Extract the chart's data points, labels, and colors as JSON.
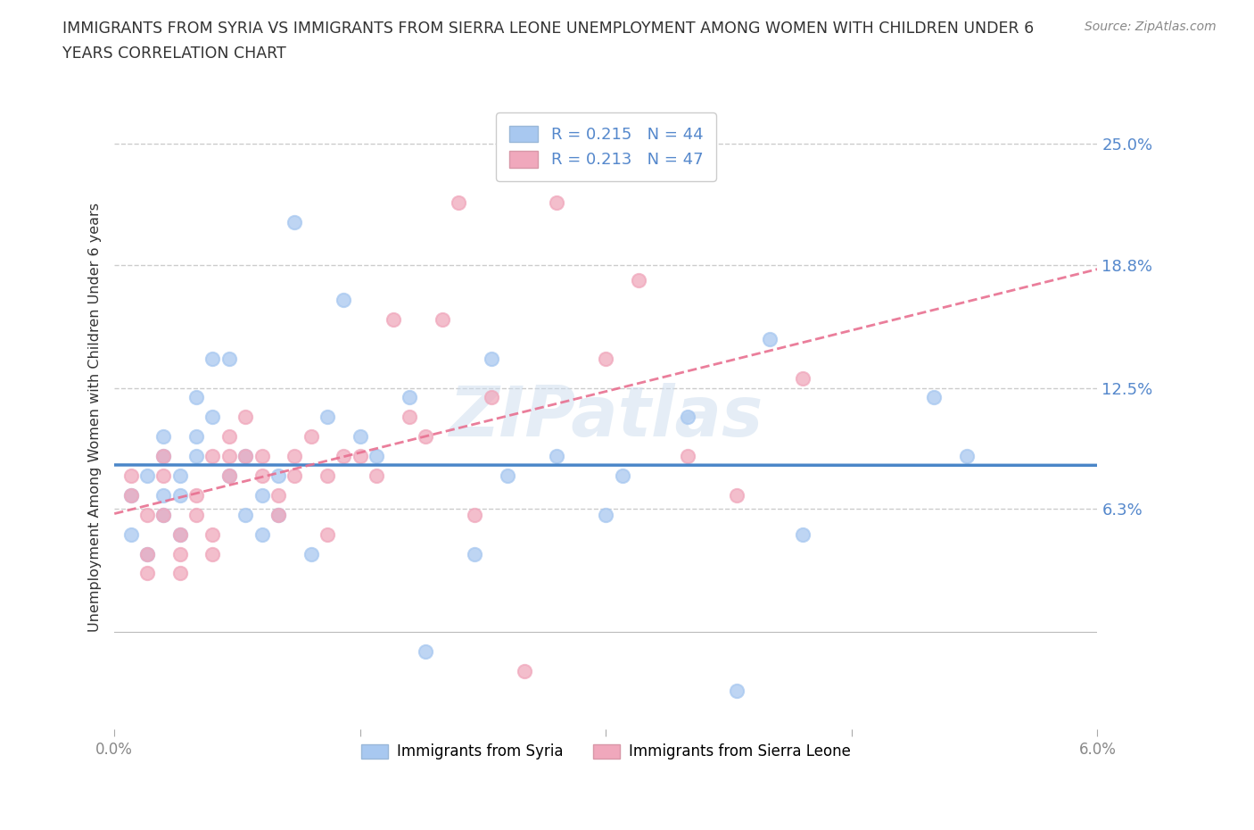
{
  "title_line1": "IMMIGRANTS FROM SYRIA VS IMMIGRANTS FROM SIERRA LEONE UNEMPLOYMENT AMONG WOMEN WITH CHILDREN UNDER 6",
  "title_line2": "YEARS CORRELATION CHART",
  "source": "Source: ZipAtlas.com",
  "ylabel": "Unemployment Among Women with Children Under 6 years",
  "xlim": [
    0.0,
    0.06
  ],
  "ylim": [
    -0.05,
    0.27
  ],
  "yticks": [
    0.063,
    0.125,
    0.188,
    0.25
  ],
  "ytick_labels": [
    "6.3%",
    "12.5%",
    "18.8%",
    "25.0%"
  ],
  "xticks": [
    0.0,
    0.015,
    0.03,
    0.045,
    0.06
  ],
  "xtick_labels": [
    "0.0%",
    "",
    "",
    "",
    "6.0%"
  ],
  "syria_color": "#a8c8f0",
  "sierra_leone_color": "#f0a8bc",
  "syria_line_color": "#4a86c8",
  "sierra_leone_line_color": "#e87090",
  "legend_syria_label": "Immigrants from Syria",
  "legend_sierra_leone_label": "Immigrants from Sierra Leone",
  "syria_R": 0.215,
  "syria_N": 44,
  "sierra_leone_R": 0.213,
  "sierra_leone_N": 47,
  "watermark": "ZIPatlas",
  "syria_x": [
    0.001,
    0.001,
    0.002,
    0.002,
    0.003,
    0.003,
    0.003,
    0.003,
    0.004,
    0.004,
    0.004,
    0.005,
    0.005,
    0.005,
    0.006,
    0.006,
    0.007,
    0.007,
    0.008,
    0.008,
    0.009,
    0.009,
    0.01,
    0.01,
    0.011,
    0.012,
    0.013,
    0.014,
    0.015,
    0.016,
    0.018,
    0.019,
    0.022,
    0.023,
    0.024,
    0.027,
    0.03,
    0.031,
    0.035,
    0.038,
    0.04,
    0.042,
    0.05,
    0.052
  ],
  "syria_y": [
    0.07,
    0.05,
    0.08,
    0.04,
    0.09,
    0.07,
    0.06,
    0.1,
    0.05,
    0.08,
    0.07,
    0.12,
    0.09,
    0.1,
    0.14,
    0.11,
    0.14,
    0.08,
    0.06,
    0.09,
    0.07,
    0.05,
    0.06,
    0.08,
    0.21,
    0.04,
    0.11,
    0.17,
    0.1,
    0.09,
    0.12,
    -0.01,
    0.04,
    0.14,
    0.08,
    0.09,
    0.06,
    0.08,
    0.11,
    -0.03,
    0.15,
    0.05,
    0.12,
    0.09
  ],
  "sierra_leone_x": [
    0.001,
    0.001,
    0.002,
    0.002,
    0.002,
    0.003,
    0.003,
    0.003,
    0.004,
    0.004,
    0.004,
    0.005,
    0.005,
    0.006,
    0.006,
    0.006,
    0.007,
    0.007,
    0.007,
    0.008,
    0.008,
    0.009,
    0.009,
    0.01,
    0.01,
    0.011,
    0.011,
    0.012,
    0.013,
    0.013,
    0.014,
    0.015,
    0.016,
    0.017,
    0.018,
    0.019,
    0.02,
    0.021,
    0.022,
    0.023,
    0.025,
    0.027,
    0.03,
    0.032,
    0.035,
    0.038,
    0.042
  ],
  "sierra_leone_y": [
    0.08,
    0.07,
    0.06,
    0.04,
    0.03,
    0.09,
    0.08,
    0.06,
    0.04,
    0.05,
    0.03,
    0.07,
    0.06,
    0.05,
    0.09,
    0.04,
    0.1,
    0.09,
    0.08,
    0.09,
    0.11,
    0.09,
    0.08,
    0.07,
    0.06,
    0.09,
    0.08,
    0.1,
    0.05,
    0.08,
    0.09,
    0.09,
    0.08,
    0.16,
    0.11,
    0.1,
    0.16,
    0.22,
    0.06,
    0.12,
    -0.02,
    0.22,
    0.14,
    0.18,
    0.09,
    0.07,
    0.13
  ],
  "background_color": "#ffffff",
  "grid_color": "#cccccc",
  "label_color": "#5588cc",
  "tick_color": "#888888"
}
